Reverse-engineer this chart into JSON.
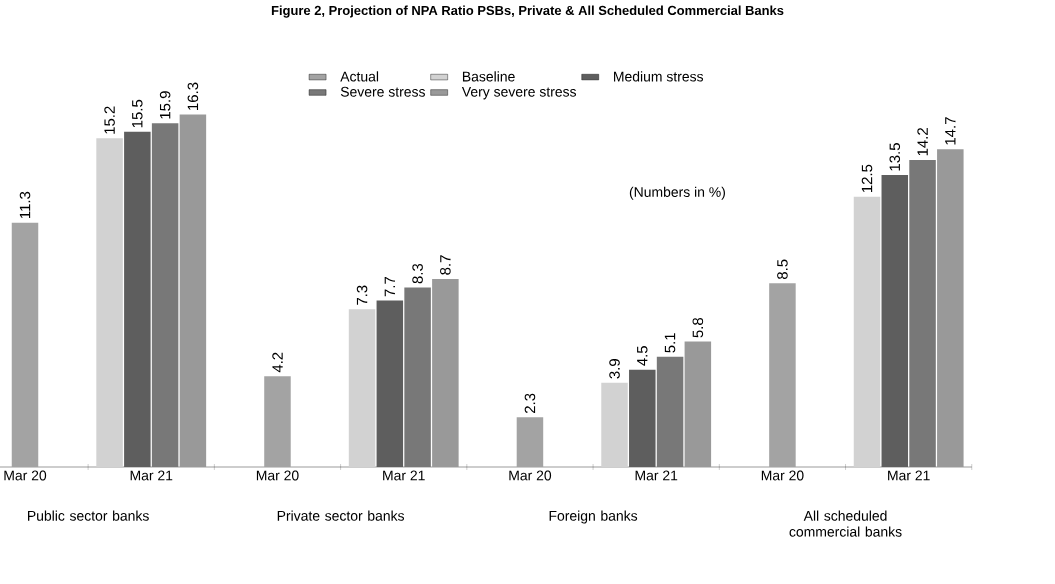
{
  "chart_data": {
    "type": "bar",
    "title": "Figure 2, Projection of NPA Ratio PSBs, Private & All Scheduled Commercial Banks",
    "categories": [
      "Mar 20",
      "Mar 21",
      "Mar 20",
      "Mar 21",
      "Mar 20",
      "Mar 21",
      "Mar 20",
      "Mar 21"
    ],
    "series": [
      {
        "name": "Actual",
        "color": "#a3a3a3",
        "values": [
          11.3,
          null,
          4.2,
          null,
          2.3,
          null,
          8.5,
          null
        ]
      },
      {
        "name": "Baseline",
        "color": "#d2d2d2",
        "values": [
          null,
          15.2,
          null,
          7.3,
          null,
          3.9,
          null,
          12.5
        ]
      },
      {
        "name": "Medium stress",
        "color": "#5e5e5e",
        "values": [
          null,
          15.5,
          null,
          7.7,
          null,
          4.5,
          null,
          13.5
        ]
      },
      {
        "name": "Severe stress",
        "color": "#787878",
        "values": [
          null,
          15.9,
          null,
          8.3,
          null,
          5.1,
          null,
          14.2
        ]
      },
      {
        "name": "Very severe stress",
        "color": "#999999",
        "values": [
          null,
          16.3,
          null,
          8.7,
          null,
          5.8,
          null,
          14.7
        ]
      }
    ],
    "annotations": [
      "(Numbers in %)",
      "Public sector banks",
      "Private sector banks",
      "Foreign banks",
      "All scheduled commercial banks"
    ],
    "data_labels": true,
    "legend": "top"
  }
}
